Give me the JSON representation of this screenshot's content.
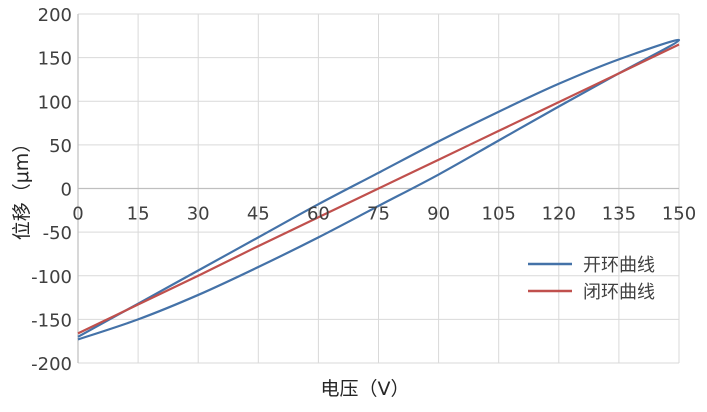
{
  "chart_data": {
    "type": "line",
    "xlabel": "电压（V）",
    "ylabel": "位移（μm）",
    "xlim": [
      0,
      150
    ],
    "ylim": [
      -200,
      200
    ],
    "xticks": [
      "0",
      "15",
      "30",
      "45",
      "60",
      "75",
      "90",
      "105",
      "120",
      "135",
      "150"
    ],
    "yticks": [
      "200",
      "150",
      "100",
      "50",
      "0",
      "-50",
      "-100",
      "-150",
      "-200"
    ],
    "grid": true,
    "legend_position": "right",
    "series": [
      {
        "name": "开环曲线",
        "color": "#4472a8",
        "x": [
          0,
          15,
          30,
          45,
          60,
          75,
          90,
          105,
          120,
          135,
          150,
          135,
          120,
          105,
          90,
          75,
          60,
          45,
          30,
          15,
          0
        ],
        "y": [
          -173,
          -150,
          -122,
          -90,
          -56,
          -20,
          16,
          55,
          94,
          132,
          170,
          148,
          120,
          88,
          54,
          18,
          -18,
          -56,
          -94,
          -132,
          -170
        ]
      },
      {
        "name": "闭环曲线",
        "color": "#c0504d",
        "x": [
          0,
          15,
          30,
          45,
          60,
          75,
          90,
          105,
          120,
          135,
          150
        ],
        "y": [
          -166,
          -133,
          -100,
          -66,
          -33,
          0,
          33,
          66,
          99,
          132,
          165
        ]
      }
    ]
  }
}
